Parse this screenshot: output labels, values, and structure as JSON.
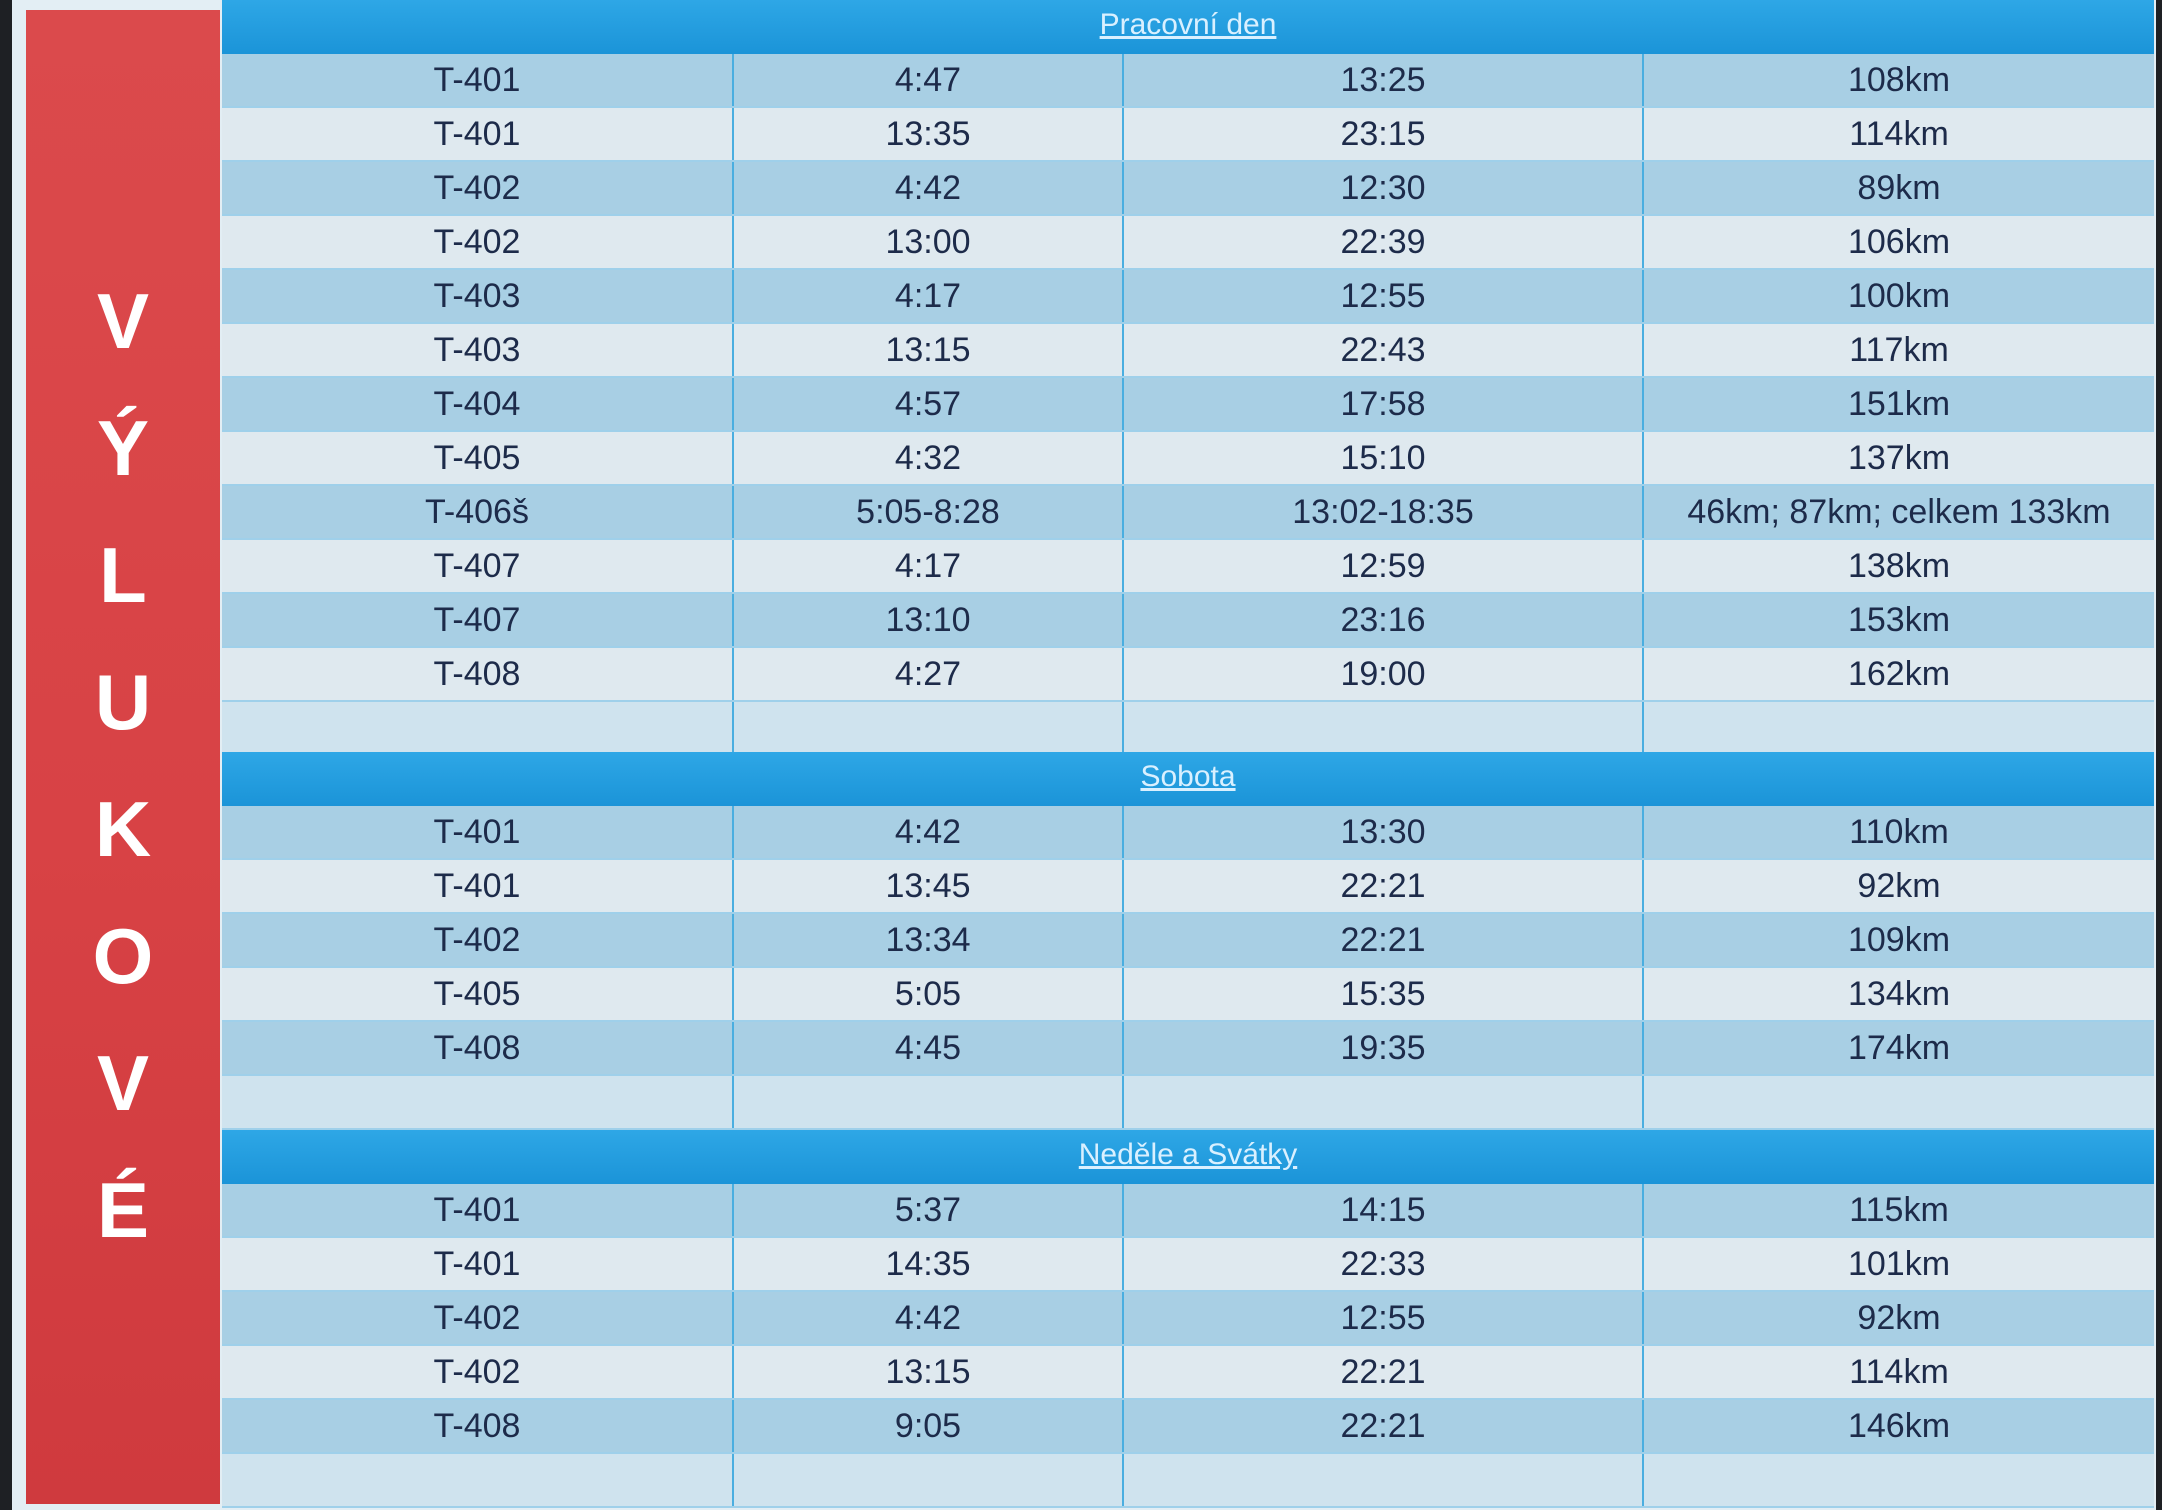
{
  "sidebar": {
    "letters": [
      "V",
      "Ý",
      "L",
      "U",
      "K",
      "O",
      "V",
      "É"
    ]
  },
  "sections": [
    {
      "title": "Pracovní den",
      "rows": [
        [
          "T-401",
          "4:47",
          "13:25",
          "108km"
        ],
        [
          "T-401",
          "13:35",
          "23:15",
          "114km"
        ],
        [
          "T-402",
          "4:42",
          "12:30",
          "89km"
        ],
        [
          "T-402",
          "13:00",
          "22:39",
          "106km"
        ],
        [
          "T-403",
          "4:17",
          "12:55",
          "100km"
        ],
        [
          "T-403",
          "13:15",
          "22:43",
          "117km"
        ],
        [
          "T-404",
          "4:57",
          "17:58",
          "151km"
        ],
        [
          "T-405",
          "4:32",
          "15:10",
          "137km"
        ],
        [
          "T-406š",
          "5:05-8:28",
          "13:02-18:35",
          "46km; 87km; celkem 133km"
        ],
        [
          "T-407",
          "4:17",
          "12:59",
          "138km"
        ],
        [
          "T-407",
          "13:10",
          "23:16",
          "153km"
        ],
        [
          "T-408",
          "4:27",
          "19:00",
          "162km"
        ]
      ]
    },
    {
      "title": "Sobota",
      "rows": [
        [
          "T-401",
          "4:42",
          "13:30",
          "110km"
        ],
        [
          "T-401",
          "13:45",
          "22:21",
          "92km"
        ],
        [
          "T-402",
          "13:34",
          "22:21",
          "109km"
        ],
        [
          "T-405",
          "5:05",
          "15:35",
          "134km"
        ],
        [
          "T-408",
          "4:45",
          "19:35",
          "174km"
        ]
      ]
    },
    {
      "title": "Neděle a Svátky",
      "rows": [
        [
          "T-401",
          "5:37",
          "14:15",
          "115km"
        ],
        [
          "T-401",
          "14:35",
          "22:33",
          "101km"
        ],
        [
          "T-402",
          "4:42",
          "12:55",
          "92km"
        ],
        [
          "T-402",
          "13:15",
          "22:21",
          "114km"
        ],
        [
          "T-408",
          "9:05",
          "22:21",
          "146km"
        ]
      ]
    }
  ],
  "colors": {
    "sidebar": "#d84245",
    "header": "#1b94d8",
    "row_dark": "#a8cfe4",
    "row_light": "#dfe9ef",
    "text": "#1d2b4a"
  }
}
